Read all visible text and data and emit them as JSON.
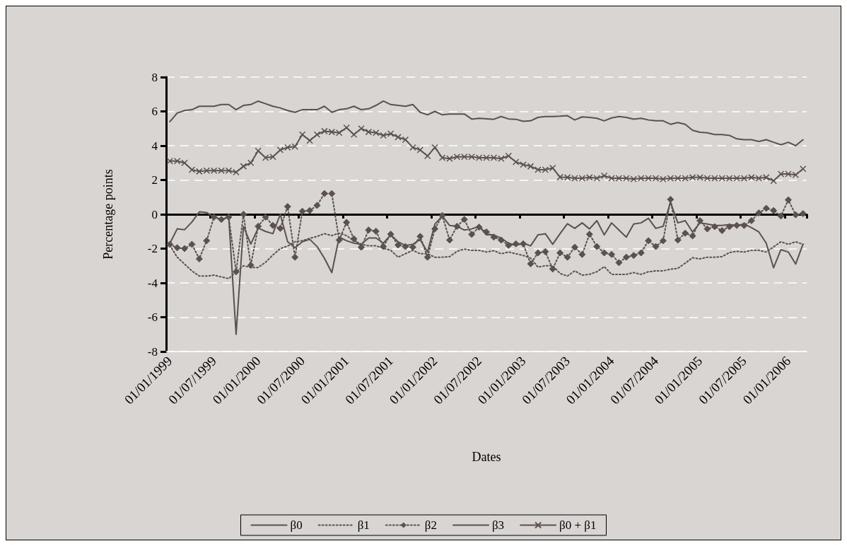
{
  "chart_data": {
    "type": "line",
    "xlabel": "Dates",
    "ylabel": "Percentage points",
    "categories": [
      "01/01/1999",
      null,
      null,
      null,
      null,
      null,
      "01/07/1999",
      null,
      null,
      null,
      null,
      null,
      "01/01/2000",
      null,
      null,
      null,
      null,
      null,
      "01/07/2000",
      null,
      null,
      null,
      null,
      null,
      "01/01/2001",
      null,
      null,
      null,
      null,
      null,
      "01/07/2001",
      null,
      null,
      null,
      null,
      null,
      "01/01/2002",
      null,
      null,
      null,
      null,
      null,
      "01/07/2002",
      null,
      null,
      null,
      null,
      null,
      "01/01/2003",
      null,
      null,
      null,
      null,
      null,
      "01/07/2003",
      null,
      null,
      null,
      null,
      null,
      "01/01/2004",
      null,
      null,
      null,
      null,
      null,
      "01/07/2004",
      null,
      null,
      null,
      null,
      null,
      "01/01/2005",
      null,
      null,
      null,
      null,
      null,
      "01/07/2005",
      null,
      null,
      null,
      null,
      null,
      "01/01/2006",
      null,
      null
    ],
    "series": [
      {
        "name": "β0",
        "color": "#5a5150",
        "line_style": "solid",
        "marker": "none",
        "values": [
          5.4,
          5.9,
          6.05,
          6.1,
          6.3,
          6.3,
          6.3,
          6.4,
          6.4,
          6.1,
          6.35,
          6.4,
          6.6,
          6.45,
          6.3,
          6.2,
          6.05,
          5.95,
          6.1,
          6.1,
          6.1,
          6.3,
          5.95,
          6.1,
          6.15,
          6.3,
          6.1,
          6.15,
          6.35,
          6.6,
          6.4,
          6.35,
          6.3,
          6.4,
          5.95,
          5.8,
          6.0,
          5.8,
          5.85,
          5.85,
          5.85,
          5.55,
          5.6,
          5.57,
          5.54,
          5.7,
          5.56,
          5.54,
          5.42,
          5.45,
          5.65,
          5.7,
          5.7,
          5.72,
          5.75,
          5.5,
          5.68,
          5.65,
          5.6,
          5.45,
          5.62,
          5.7,
          5.65,
          5.55,
          5.6,
          5.5,
          5.45,
          5.45,
          5.25,
          5.35,
          5.25,
          4.9,
          4.78,
          4.75,
          4.65,
          4.65,
          4.6,
          4.4,
          4.35,
          4.35,
          4.25,
          4.35,
          4.2,
          4.05,
          4.2,
          4.0,
          4.35
        ]
      },
      {
        "name": "β1",
        "color": "#5a5150",
        "line_style": "dotted",
        "marker": "none",
        "values": [
          -1.8,
          -2.5,
          -2.9,
          -3.3,
          -3.6,
          -3.6,
          -3.55,
          -3.65,
          -3.75,
          -3.35,
          -3.0,
          -3.1,
          -3.1,
          -2.8,
          -2.37,
          -2.0,
          -1.85,
          -1.6,
          -1.54,
          -1.4,
          -1.29,
          -1.13,
          -1.24,
          -1.1,
          -1.24,
          -1.54,
          -1.74,
          -1.84,
          -1.84,
          -1.98,
          -2.1,
          -2.5,
          -2.3,
          -2.1,
          -2.3,
          -2.3,
          -2.5,
          -2.5,
          -2.47,
          -2.16,
          -2.03,
          -2.1,
          -2.1,
          -2.2,
          -2.12,
          -2.3,
          -2.2,
          -2.3,
          -2.4,
          -2.55,
          -3.08,
          -3.0,
          -3.0,
          -3.45,
          -3.6,
          -3.3,
          -3.55,
          -3.5,
          -3.35,
          -3.05,
          -3.5,
          -3.5,
          -3.5,
          -3.4,
          -3.5,
          -3.35,
          -3.3,
          -3.3,
          -3.2,
          -3.15,
          -2.85,
          -2.53,
          -2.6,
          -2.5,
          -2.5,
          -2.47,
          -2.23,
          -2.16,
          -2.2,
          -2.1,
          -2.1,
          -2.2,
          -1.9,
          -1.6,
          -1.75,
          -1.6,
          -1.75
        ]
      },
      {
        "name": "β2",
        "color": "#5a5150",
        "line_style": "dotted",
        "marker": "diamond",
        "values": [
          -1.75,
          -1.95,
          -2.0,
          -1.75,
          -2.6,
          -1.54,
          -0.16,
          -0.3,
          -0.16,
          -3.35,
          0.0,
          -2.97,
          -0.7,
          -0.16,
          -0.65,
          -0.82,
          0.45,
          -2.5,
          0.18,
          0.22,
          0.52,
          1.21,
          1.21,
          -1.5,
          -0.47,
          -1.43,
          -1.92,
          -0.92,
          -0.99,
          -1.88,
          -1.16,
          -1.79,
          -1.88,
          -1.92,
          -1.29,
          -2.5,
          -0.85,
          -0.07,
          -1.5,
          -0.7,
          -0.3,
          -1.17,
          -0.75,
          -1.03,
          -1.33,
          -1.5,
          -1.81,
          -1.72,
          -1.72,
          -2.89,
          -2.25,
          -2.18,
          -3.19,
          -2.25,
          -2.5,
          -1.92,
          -2.34,
          -1.16,
          -1.88,
          -2.25,
          -2.34,
          -2.82,
          -2.5,
          -2.4,
          -2.25,
          -1.54,
          -1.88,
          -1.54,
          0.87,
          -1.5,
          -1.1,
          -1.26,
          -0.37,
          -0.85,
          -0.72,
          -0.95,
          -0.72,
          -0.65,
          -0.65,
          -0.37,
          0.08,
          0.35,
          0.22,
          -0.1,
          0.84,
          -0.03,
          0.04
        ]
      },
      {
        "name": "β3",
        "color": "#5a5150",
        "line_style": "solid",
        "marker": "none",
        "values": [
          -1.7,
          -0.85,
          -0.9,
          -0.45,
          0.14,
          0.1,
          -0.16,
          -0.3,
          -0.16,
          -7.0,
          -0.7,
          -1.74,
          -0.8,
          -1.0,
          -1.13,
          0.0,
          -1.6,
          -1.95,
          -1.6,
          -1.46,
          -1.88,
          -2.57,
          -3.4,
          -1.33,
          -1.54,
          -1.68,
          -1.75,
          -1.38,
          -1.38,
          -1.68,
          -1.2,
          -1.6,
          -1.82,
          -1.75,
          -1.47,
          -2.2,
          -0.57,
          -0.1,
          -0.65,
          -0.7,
          -0.92,
          -0.85,
          -0.7,
          -1.2,
          -1.2,
          -1.4,
          -1.68,
          -1.82,
          -1.68,
          -1.84,
          -1.2,
          -1.13,
          -1.75,
          -1.13,
          -0.55,
          -0.82,
          -0.5,
          -0.85,
          -0.37,
          -1.2,
          -0.5,
          -0.92,
          -1.33,
          -0.57,
          -0.5,
          -0.23,
          -0.82,
          -0.7,
          0.7,
          -0.5,
          -0.37,
          -1.03,
          -0.5,
          -0.57,
          -0.65,
          -0.65,
          -0.6,
          -0.65,
          -0.57,
          -0.78,
          -1.03,
          -1.68,
          -3.12,
          -2.06,
          -2.2,
          -2.9,
          -1.74
        ]
      },
      {
        "name": "β0 + β1",
        "color": "#5a5150",
        "line_style": "solid",
        "marker": "cross",
        "values": [
          3.1,
          3.1,
          3.0,
          2.6,
          2.5,
          2.55,
          2.55,
          2.55,
          2.55,
          2.45,
          2.8,
          3.0,
          3.7,
          3.3,
          3.35,
          3.75,
          3.9,
          3.95,
          4.65,
          4.3,
          4.65,
          4.85,
          4.8,
          4.75,
          5.05,
          4.65,
          5.0,
          4.8,
          4.75,
          4.6,
          4.7,
          4.5,
          4.35,
          3.9,
          3.75,
          3.4,
          3.9,
          3.3,
          3.25,
          3.35,
          3.35,
          3.35,
          3.3,
          3.3,
          3.3,
          3.25,
          3.4,
          3.05,
          2.9,
          2.8,
          2.6,
          2.6,
          2.7,
          2.17,
          2.15,
          2.1,
          2.1,
          2.15,
          2.1,
          2.25,
          2.1,
          2.1,
          2.1,
          2.05,
          2.1,
          2.1,
          2.1,
          2.05,
          2.1,
          2.1,
          2.1,
          2.15,
          2.15,
          2.1,
          2.1,
          2.1,
          2.1,
          2.1,
          2.1,
          2.15,
          2.1,
          2.15,
          1.95,
          2.35,
          2.35,
          2.3,
          2.65
        ]
      }
    ],
    "ylim": [
      -8,
      8
    ],
    "yticks": [
      -8,
      -6,
      -4,
      -2,
      0,
      2,
      4,
      6,
      8
    ],
    "grid": "y",
    "legend": "bottom"
  }
}
